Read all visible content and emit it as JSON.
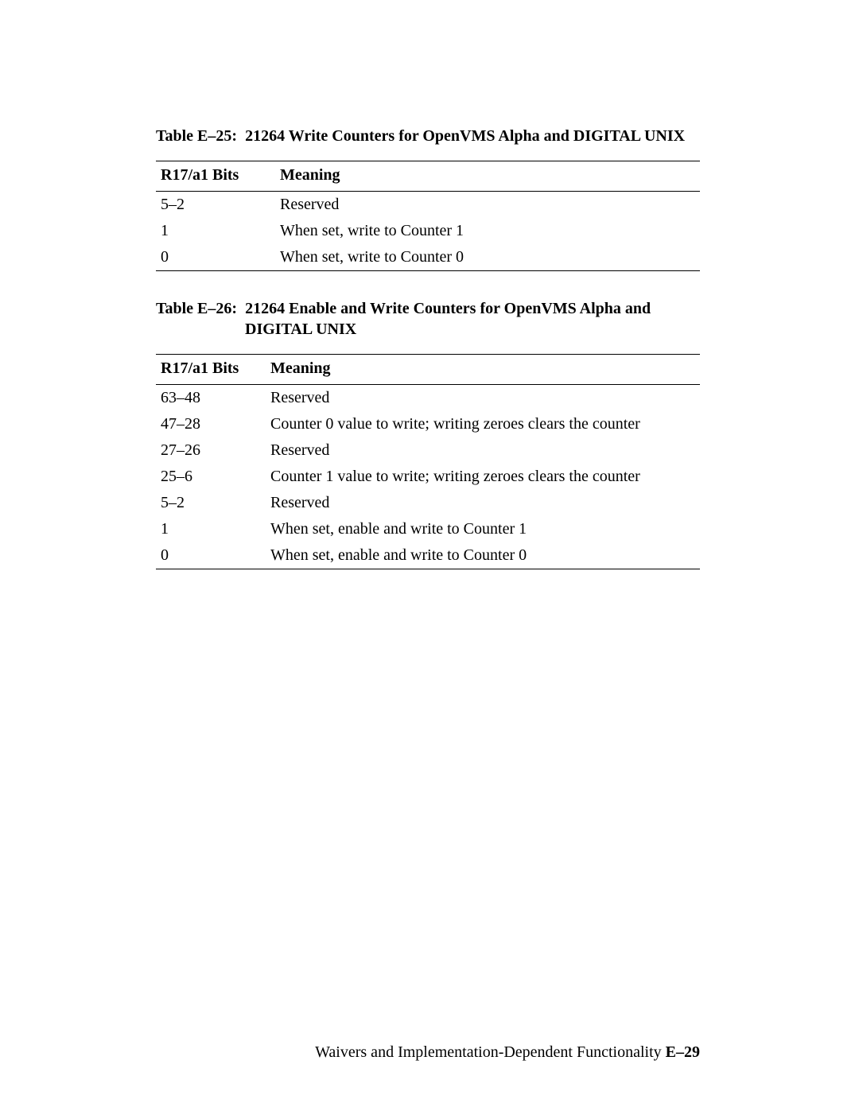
{
  "tableE25": {
    "caption_num": "Table E–25:",
    "caption_text": "21264 Write Counters for OpenVMS Alpha and DIGITAL UNIX",
    "col1": "R17/a1 Bits",
    "col2": "Meaning",
    "rows": [
      {
        "bits": "5–2",
        "meaning": "Reserved"
      },
      {
        "bits": "1",
        "meaning": "When set, write to Counter 1"
      },
      {
        "bits": "0",
        "meaning": "When set, write to Counter 0"
      }
    ]
  },
  "tableE26": {
    "caption_num": "Table E–26:",
    "caption_line1": "21264 Enable and Write Counters for OpenVMS Alpha and",
    "caption_line2": "DIGITAL UNIX",
    "col1": "R17/a1 Bits",
    "col2": "Meaning",
    "rows": [
      {
        "bits": "63–48",
        "meaning": "Reserved"
      },
      {
        "bits": "47–28",
        "meaning": "Counter 0 value to write; writing zeroes clears the counter"
      },
      {
        "bits": "27–26",
        "meaning": "Reserved"
      },
      {
        "bits": "25–6",
        "meaning": "Counter 1 value to write; writing zeroes clears the counter"
      },
      {
        "bits": "5–2",
        "meaning": "Reserved"
      },
      {
        "bits": "1",
        "meaning": "When set,  enable and write to Counter 1"
      },
      {
        "bits": "0",
        "meaning": "When set,  enable and write to Counter 0"
      }
    ]
  },
  "footer": {
    "text": "Waivers and Implementation-Dependent Functionality ",
    "page": "E–29"
  }
}
